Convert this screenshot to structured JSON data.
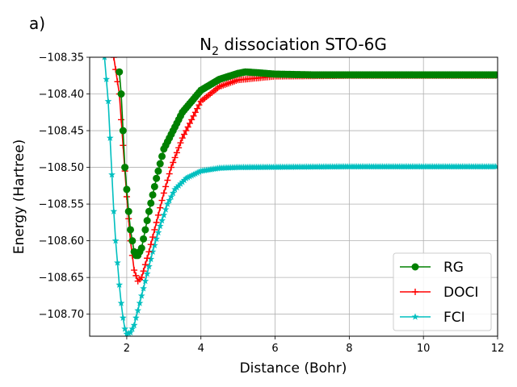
{
  "chart_data": {
    "type": "line",
    "panel_label": "a)",
    "title": "N",
    "title_subscript": "2",
    "title_suffix": " dissociation STO-6G",
    "xlabel": "Distance (Bohr)",
    "ylabel": "Energy (Hartree)",
    "xlim": [
      1,
      12
    ],
    "ylim": [
      -108.73,
      -108.35
    ],
    "xticks": [
      2,
      4,
      6,
      8,
      10,
      12
    ],
    "xtick_labels": [
      "2",
      "4",
      "6",
      "8",
      "10",
      "12"
    ],
    "yticks": [
      -108.35,
      -108.4,
      -108.45,
      -108.5,
      -108.55,
      -108.6,
      -108.65,
      -108.7
    ],
    "ytick_labels": [
      "−108.35",
      "−108.40",
      "−108.45",
      "−108.50",
      "−108.55",
      "−108.60",
      "−108.65",
      "−108.70"
    ],
    "grid": true,
    "legend_position": "lower-right",
    "series": [
      {
        "name": "RG",
        "color": "#008000",
        "marker": "circle",
        "points": [
          [
            1.8,
            -108.37
          ],
          [
            1.85,
            -108.4
          ],
          [
            1.9,
            -108.45
          ],
          [
            1.95,
            -108.5
          ],
          [
            2.0,
            -108.53
          ],
          [
            2.05,
            -108.56
          ],
          [
            2.1,
            -108.585
          ],
          [
            2.15,
            -108.6
          ],
          [
            2.2,
            -108.615
          ],
          [
            2.25,
            -108.62
          ],
          [
            2.3,
            -108.62
          ],
          [
            2.4,
            -108.61
          ],
          [
            2.5,
            -108.585
          ],
          [
            2.6,
            -108.56
          ],
          [
            2.8,
            -108.515
          ],
          [
            3.0,
            -108.475
          ],
          [
            3.2,
            -108.455
          ],
          [
            3.5,
            -108.425
          ],
          [
            4.0,
            -108.395
          ],
          [
            4.5,
            -108.38
          ],
          [
            5.0,
            -108.372
          ],
          [
            5.2,
            -108.37
          ],
          [
            5.5,
            -108.371
          ],
          [
            6.0,
            -108.373
          ],
          [
            7.0,
            -108.374
          ],
          [
            9.0,
            -108.374
          ],
          [
            12.0,
            -108.374
          ]
        ]
      },
      {
        "name": "DOCI",
        "color": "#ff0000",
        "marker": "plus",
        "points": [
          [
            1.65,
            -108.35
          ],
          [
            1.8,
            -108.4
          ],
          [
            1.9,
            -108.47
          ],
          [
            2.0,
            -108.54
          ],
          [
            2.1,
            -108.6
          ],
          [
            2.2,
            -108.64
          ],
          [
            2.3,
            -108.655
          ],
          [
            2.4,
            -108.65
          ],
          [
            2.6,
            -108.615
          ],
          [
            2.8,
            -108.575
          ],
          [
            3.0,
            -108.535
          ],
          [
            3.2,
            -108.5
          ],
          [
            3.5,
            -108.46
          ],
          [
            4.0,
            -108.41
          ],
          [
            4.5,
            -108.39
          ],
          [
            5.0,
            -108.381
          ],
          [
            6.0,
            -108.376
          ],
          [
            8.0,
            -108.375
          ],
          [
            12.0,
            -108.375
          ]
        ]
      },
      {
        "name": "FCI",
        "color": "#00bfbf",
        "marker": "star",
        "points": [
          [
            1.4,
            -108.35
          ],
          [
            1.45,
            -108.38
          ],
          [
            1.5,
            -108.41
          ],
          [
            1.55,
            -108.46
          ],
          [
            1.6,
            -108.51
          ],
          [
            1.65,
            -108.56
          ],
          [
            1.7,
            -108.6
          ],
          [
            1.75,
            -108.63
          ],
          [
            1.8,
            -108.66
          ],
          [
            1.85,
            -108.685
          ],
          [
            1.9,
            -108.705
          ],
          [
            1.95,
            -108.72
          ],
          [
            2.0,
            -108.727
          ],
          [
            2.1,
            -108.725
          ],
          [
            2.2,
            -108.715
          ],
          [
            2.3,
            -108.695
          ],
          [
            2.5,
            -108.655
          ],
          [
            2.7,
            -108.615
          ],
          [
            2.9,
            -108.58
          ],
          [
            3.1,
            -108.55
          ],
          [
            3.3,
            -108.53
          ],
          [
            3.6,
            -108.515
          ],
          [
            4.0,
            -108.505
          ],
          [
            4.5,
            -108.501
          ],
          [
            5.0,
            -108.5
          ],
          [
            8.0,
            -108.499
          ],
          [
            12.0,
            -108.499
          ]
        ]
      }
    ]
  }
}
